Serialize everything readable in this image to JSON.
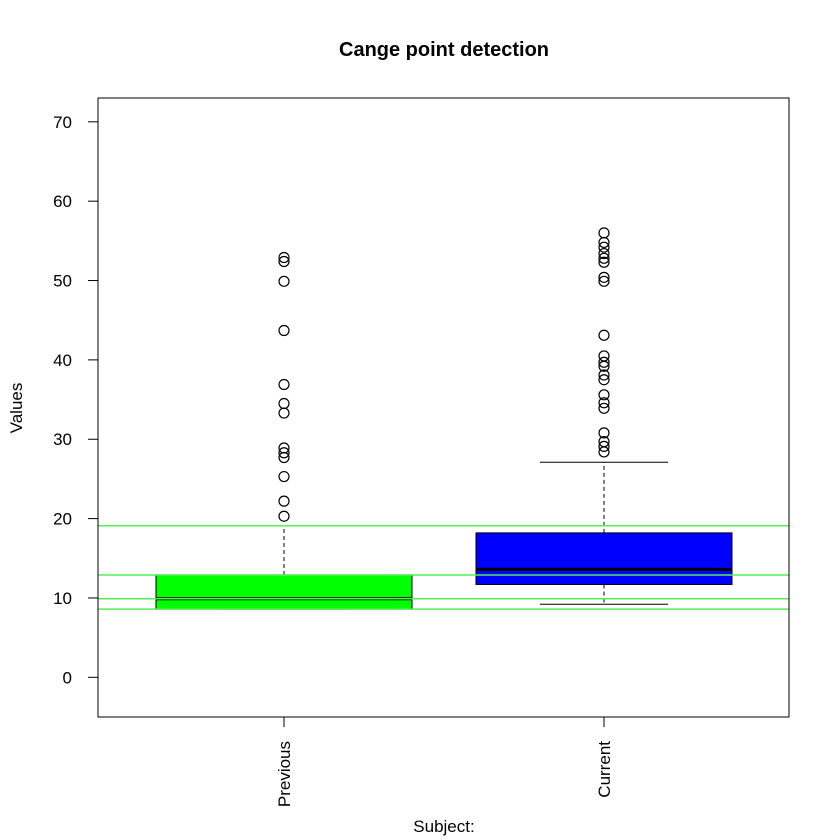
{
  "chart_data": {
    "type": "boxplot",
    "title": "Cange point detection",
    "xlabel": "Subject:",
    "ylabel": "Values",
    "ylim": [
      -5,
      73
    ],
    "yticks": [
      0,
      10,
      20,
      30,
      40,
      50,
      60,
      70
    ],
    "categories": [
      "Previous",
      "Current"
    ],
    "boxes": [
      {
        "name": "Previous",
        "color": "#00ff00",
        "lower_whisker": 8.6,
        "q1": 8.6,
        "median": 9.9,
        "q3": 12.9,
        "upper_whisker": 19.1,
        "outliers": [
          20.3,
          22.2,
          25.3,
          27.7,
          28.3,
          28.9,
          33.3,
          34.5,
          36.9,
          43.7,
          49.9,
          52.4,
          52.9
        ]
      },
      {
        "name": "Current",
        "color": "#0000ff",
        "lower_whisker": 9.2,
        "q1": 11.7,
        "median": 13.6,
        "q3": 18.2,
        "upper_whisker": 27.1,
        "outliers": [
          28.4,
          29.1,
          29.7,
          30.8,
          33.9,
          34.6,
          35.6,
          37.5,
          38.1,
          39.2,
          39.7,
          40.5,
          43.1,
          49.9,
          50.4,
          52.3,
          52.8,
          53.4,
          54.2,
          54.8,
          56.0
        ]
      }
    ],
    "reference_lines": {
      "color": "#55ee55",
      "values": [
        19.1,
        12.9,
        9.9,
        8.6
      ]
    },
    "grid": false
  }
}
